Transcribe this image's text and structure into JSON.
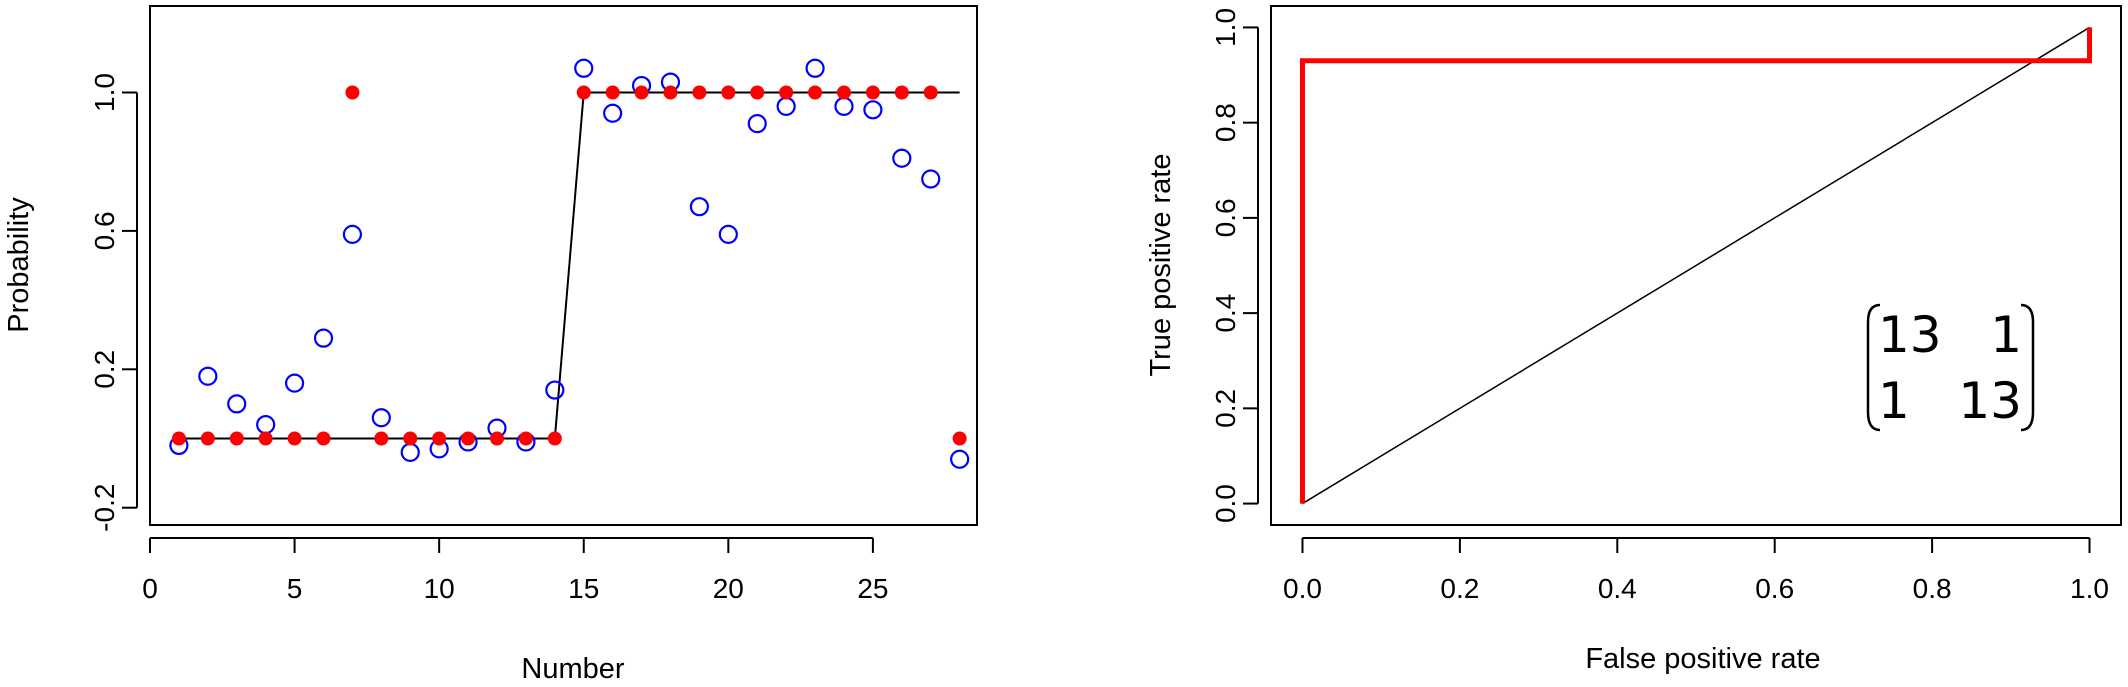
{
  "chart_data": [
    {
      "type": "scatter",
      "xlabel": "Number",
      "ylabel": "Probability",
      "xlim": [
        0,
        28.6
      ],
      "ylim": [
        -0.25,
        1.25
      ],
      "xticks": [
        0,
        5,
        10,
        15,
        20,
        25
      ],
      "xtick_labels": [
        "0",
        "5",
        "10",
        "15",
        "20",
        "25"
      ],
      "yticks": [
        -0.2,
        0.2,
        0.6,
        1.0
      ],
      "ytick_labels": [
        "-0.2",
        "0.2",
        "0.6",
        "1.0"
      ],
      "step_line": {
        "color": "#000000",
        "x": [
          1,
          14,
          15,
          28
        ],
        "y": [
          0,
          0,
          1,
          1
        ]
      },
      "series": [
        {
          "marker": "open-circle",
          "color": "#0000ff",
          "x": [
            1,
            2,
            3,
            4,
            5,
            6,
            7,
            8,
            9,
            10,
            11,
            12,
            13,
            14,
            15,
            16,
            17,
            18,
            19,
            20,
            21,
            22,
            23,
            24,
            25,
            26,
            27,
            28
          ],
          "y": [
            -0.02,
            0.18,
            0.1,
            0.04,
            0.16,
            0.29,
            0.59,
            0.06,
            -0.04,
            -0.03,
            -0.01,
            0.03,
            -0.01,
            0.14,
            1.07,
            0.94,
            1.02,
            1.03,
            0.67,
            0.59,
            0.91,
            0.96,
            1.07,
            0.96,
            0.95,
            0.81,
            0.75,
            -0.06
          ]
        },
        {
          "marker": "filled-circle",
          "color": "#ff0000",
          "x": [
            1,
            2,
            3,
            4,
            5,
            6,
            7,
            8,
            9,
            10,
            11,
            12,
            13,
            14,
            15,
            16,
            17,
            18,
            19,
            20,
            21,
            22,
            23,
            24,
            25,
            26,
            27,
            28
          ],
          "y": [
            0,
            0,
            0,
            0,
            0,
            0,
            1,
            0,
            0,
            0,
            0,
            0,
            0,
            0,
            1,
            1,
            1,
            1,
            1,
            1,
            1,
            1,
            1,
            1,
            1,
            1,
            1,
            0
          ]
        }
      ]
    },
    {
      "type": "line",
      "xlabel": "False positive rate",
      "ylabel": "True positive rate",
      "xlim": [
        -0.04,
        1.04
      ],
      "ylim": [
        -0.045,
        1.045
      ],
      "xticks": [
        0.0,
        0.2,
        0.4,
        0.6,
        0.8,
        1.0
      ],
      "xtick_labels": [
        "0.0",
        "0.2",
        "0.4",
        "0.6",
        "0.8",
        "1.0"
      ],
      "yticks": [
        0.0,
        0.2,
        0.4,
        0.6,
        0.8,
        1.0
      ],
      "ytick_labels": [
        "0.0",
        "0.2",
        "0.4",
        "0.6",
        "0.8",
        "1.0"
      ],
      "series": [
        {
          "color": "#ff0000",
          "x": [
            0,
            0,
            1,
            1
          ],
          "y": [
            0,
            0.93,
            0.93,
            1
          ]
        },
        {
          "color": "#000000",
          "x": [
            0,
            1
          ],
          "y": [
            0,
            1
          ]
        }
      ],
      "annotation_matrix": [
        [
          "13",
          "1"
        ],
        [
          "1",
          "13"
        ]
      ]
    }
  ]
}
